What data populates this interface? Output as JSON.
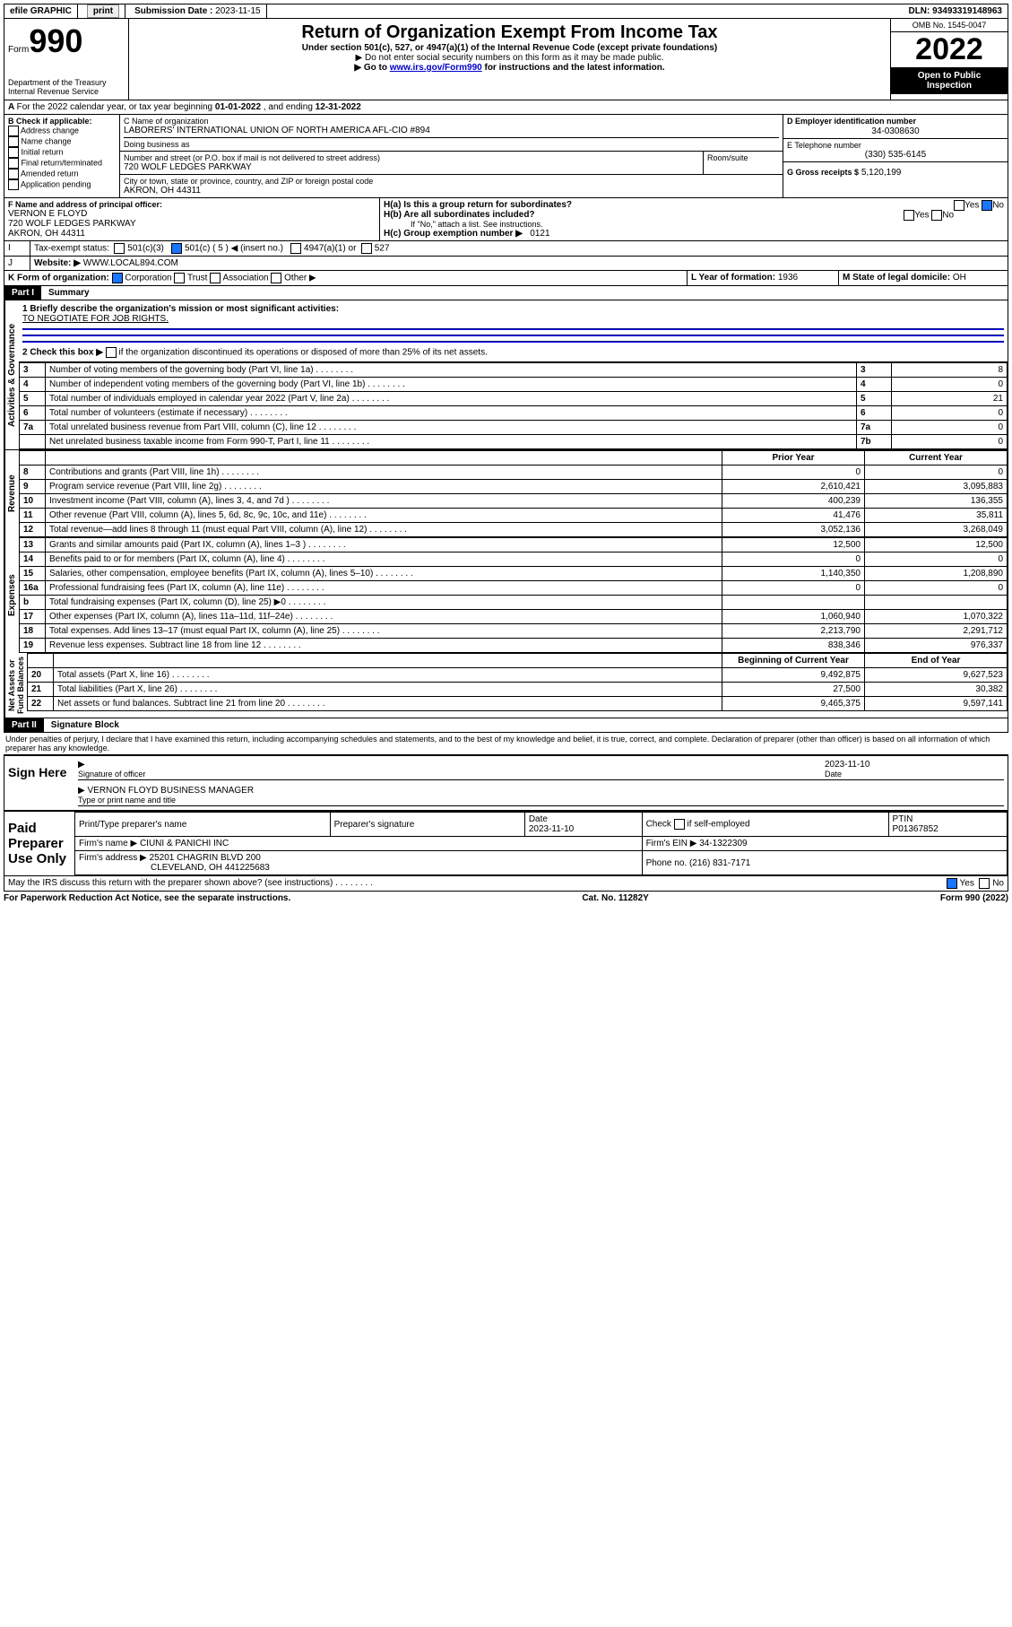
{
  "topbar": {
    "efile": "efile GRAPHIC",
    "print": "print",
    "sublabel": "Submission Date :",
    "subdate": "2023-11-15",
    "dln": "DLN: 93493319148963"
  },
  "header": {
    "formword": "Form",
    "formno": "990",
    "dept": "Department of the Treasury",
    "irs": "Internal Revenue Service",
    "title": "Return of Organization Exempt From Income Tax",
    "sub1": "Under section 501(c), 527, or 4947(a)(1) of the Internal Revenue Code (except private foundations)",
    "sub2": "▶ Do not enter social security numbers on this form as it may be made public.",
    "sub3a": "▶ Go to ",
    "sub3link": "www.irs.gov/Form990",
    "sub3b": " for instructions and the latest information.",
    "omb": "OMB No. 1545-0047",
    "year": "2022",
    "open": "Open to Public Inspection"
  },
  "A": {
    "text": "For the 2022 calendar year, or tax year beginning ",
    "begin": "01-01-2022",
    "mid": " , and ending ",
    "end": "12-31-2022"
  },
  "B": {
    "label": "B Check if applicable:",
    "items": [
      "Address change",
      "Name change",
      "Initial return",
      "Final return/terminated",
      "Amended return",
      "Application pending"
    ]
  },
  "C": {
    "label": "C Name of organization",
    "name": "LABORERS' INTERNATIONAL UNION OF NORTH AMERICA AFL-CIO #894",
    "dba": "Doing business as",
    "streetlabel": "Number and street (or P.O. box if mail is not delivered to street address)",
    "street": "720 WOLF LEDGES PARKWAY",
    "room": "Room/suite",
    "citylabel": "City or town, state or province, country, and ZIP or foreign postal code",
    "city": "AKRON, OH  44311"
  },
  "D": {
    "label": "D Employer identification number",
    "val": "34-0308630"
  },
  "E": {
    "label": "E Telephone number",
    "val": "(330) 535-6145"
  },
  "G": {
    "label": "G Gross receipts $",
    "val": "5,120,199"
  },
  "F": {
    "label": "F Name and address of principal officer:",
    "name": "VERNON E FLOYD",
    "addr1": "720 WOLF LEDGES PARKWAY",
    "addr2": "AKRON, OH  44311"
  },
  "H": {
    "a": "H(a)  Is this a group return for subordinates?",
    "a_no": "No",
    "a_yes": "Yes",
    "b": "H(b)  Are all subordinates included?",
    "b_yes": "Yes",
    "b_no": "No",
    "bnote": "If \"No,\" attach a list. See instructions.",
    "c": "H(c)  Group exemption number ▶",
    "cval": "0121"
  },
  "I": {
    "label": "I",
    "text": "Tax-exempt status:",
    "c3": "501(c)(3)",
    "c5": "501(c) ( 5 ) ◀ (insert no.)",
    "a1": "4947(a)(1) or",
    "s527": "527"
  },
  "J": {
    "label": "J",
    "text": "Website: ▶",
    "val": "WWW.LOCAL894.COM"
  },
  "K": {
    "text": "K Form of organization:",
    "corp": "Corporation",
    "trust": "Trust",
    "assoc": "Association",
    "other": "Other ▶"
  },
  "L": {
    "text": "L Year of formation:",
    "val": "1936"
  },
  "M": {
    "text": "M State of legal domicile:",
    "val": "OH"
  },
  "part1": {
    "label": "Part I",
    "title": "Summary"
  },
  "summary": {
    "l1a": "1  Briefly describe the organization's mission or most significant activities:",
    "l1b": "TO NEGOTIATE FOR JOB RIGHTS.",
    "l2": "2  Check this box ▶",
    "l2b": "if the organization discontinued its operations or disposed of more than 25% of its net assets.",
    "rows_ag": [
      {
        "n": "3",
        "t": "Number of voting members of the governing body (Part VI, line 1a)",
        "box": "3",
        "v": "8"
      },
      {
        "n": "4",
        "t": "Number of independent voting members of the governing body (Part VI, line 1b)",
        "box": "4",
        "v": "0"
      },
      {
        "n": "5",
        "t": "Total number of individuals employed in calendar year 2022 (Part V, line 2a)",
        "box": "5",
        "v": "21"
      },
      {
        "n": "6",
        "t": "Total number of volunteers (estimate if necessary)",
        "box": "6",
        "v": "0"
      },
      {
        "n": "7a",
        "t": "Total unrelated business revenue from Part VIII, column (C), line 12",
        "box": "7a",
        "v": "0"
      },
      {
        "n": "",
        "t": "Net unrelated business taxable income from Form 990-T, Part I, line 11",
        "box": "7b",
        "v": "0"
      }
    ],
    "col_prior": "Prior Year",
    "col_curr": "Current Year",
    "rev": [
      {
        "n": "8",
        "t": "Contributions and grants (Part VIII, line 1h)",
        "p": "0",
        "c": "0"
      },
      {
        "n": "9",
        "t": "Program service revenue (Part VIII, line 2g)",
        "p": "2,610,421",
        "c": "3,095,883"
      },
      {
        "n": "10",
        "t": "Investment income (Part VIII, column (A), lines 3, 4, and 7d )",
        "p": "400,239",
        "c": "136,355"
      },
      {
        "n": "11",
        "t": "Other revenue (Part VIII, column (A), lines 5, 6d, 8c, 9c, 10c, and 11e)",
        "p": "41,476",
        "c": "35,811"
      },
      {
        "n": "12",
        "t": "Total revenue—add lines 8 through 11 (must equal Part VIII, column (A), line 12)",
        "p": "3,052,136",
        "c": "3,268,049"
      }
    ],
    "exp": [
      {
        "n": "13",
        "t": "Grants and similar amounts paid (Part IX, column (A), lines 1–3 )",
        "p": "12,500",
        "c": "12,500"
      },
      {
        "n": "14",
        "t": "Benefits paid to or for members (Part IX, column (A), line 4)",
        "p": "0",
        "c": "0"
      },
      {
        "n": "15",
        "t": "Salaries, other compensation, employee benefits (Part IX, column (A), lines 5–10)",
        "p": "1,140,350",
        "c": "1,208,890"
      },
      {
        "n": "16a",
        "t": "Professional fundraising fees (Part IX, column (A), line 11e)",
        "p": "0",
        "c": "0"
      },
      {
        "n": "b",
        "t": "Total fundraising expenses (Part IX, column (D), line 25) ▶0",
        "p": "",
        "c": ""
      },
      {
        "n": "17",
        "t": "Other expenses (Part IX, column (A), lines 11a–11d, 11f–24e)",
        "p": "1,060,940",
        "c": "1,070,322"
      },
      {
        "n": "18",
        "t": "Total expenses. Add lines 13–17 (must equal Part IX, column (A), line 25)",
        "p": "2,213,790",
        "c": "2,291,712"
      },
      {
        "n": "19",
        "t": "Revenue less expenses. Subtract line 18 from line 12",
        "p": "838,346",
        "c": "976,337"
      }
    ],
    "na_h1": "Beginning of Current Year",
    "na_h2": "End of Year",
    "na": [
      {
        "n": "20",
        "t": "Total assets (Part X, line 16)",
        "p": "9,492,875",
        "c": "9,627,523"
      },
      {
        "n": "21",
        "t": "Total liabilities (Part X, line 26)",
        "p": "27,500",
        "c": "30,382"
      },
      {
        "n": "22",
        "t": "Net assets or fund balances. Subtract line 21 from line 20",
        "p": "9,465,375",
        "c": "9,597,141"
      }
    ]
  },
  "part2": {
    "label": "Part II",
    "title": "Signature Block"
  },
  "sigtext": "Under penalties of perjury, I declare that I have examined this return, including accompanying schedules and statements, and to the best of my knowledge and belief, it is true, correct, and complete. Declaration of preparer (other than officer) is based on all information of which preparer has any knowledge.",
  "sign": {
    "here": "Sign Here",
    "sigoff": "Signature of officer",
    "date": "2023-11-10",
    "datelabel": "Date",
    "name": "VERNON FLOYD  BUSINESS MANAGER",
    "nametag": "Type or print name and title"
  },
  "paid": {
    "title": "Paid Preparer Use Only",
    "h": [
      "Print/Type preparer's name",
      "Preparer's signature",
      "Date",
      "",
      "PTIN"
    ],
    "date": "2023-11-10",
    "check": "Check",
    "if": "if self-employed",
    "ptin": "P01367852",
    "firm": "Firm's name  ▶",
    "firmval": "CIUNI & PANICHI INC",
    "ein": "Firm's EIN ▶",
    "einval": "34-1322309",
    "addr": "Firm's address ▶",
    "addrval": "25201 CHAGRIN BLVD 200",
    "addr2": "CLEVELAND, OH  441225683",
    "phone": "Phone no.",
    "phoneval": "(216) 831-7171"
  },
  "discuss": {
    "text": "May the IRS discuss this return with the preparer shown above? (see instructions)",
    "yes": "Yes",
    "no": "No"
  },
  "foot": {
    "l": "For Paperwork Reduction Act Notice, see the separate instructions.",
    "m": "Cat. No. 11282Y",
    "r": "Form 990 (2022)"
  }
}
